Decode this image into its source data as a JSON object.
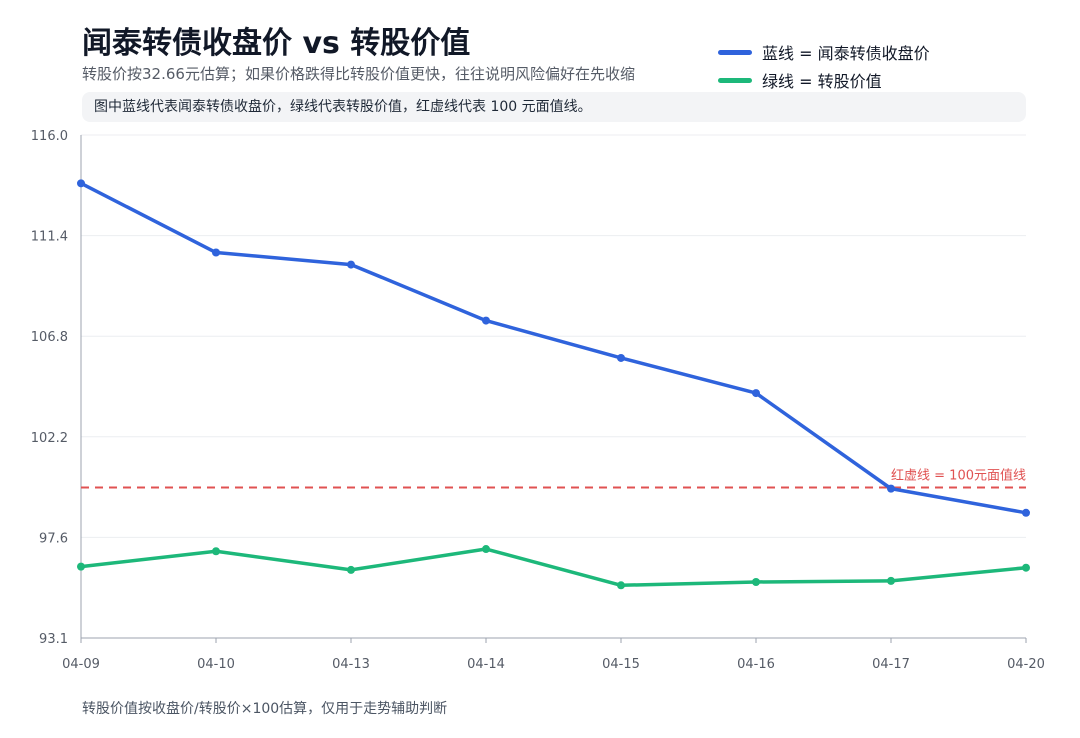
{
  "chart_data": {
    "type": "line",
    "title": "闻泰转债收盘价 vs 转股价值",
    "subtitle": "转股价按32.66元估算；如果价格跌得比转股价值更快，往往说明风险偏好在先收缩",
    "note": "图中蓝线代表闻泰转债收盘价，绿线代表转股价值，红虚线代表 100 元面值线。",
    "footer": "转股价值按收盘价/转股价×100估算，仅用于走势辅助判断",
    "categories": [
      "04-09",
      "04-10",
      "04-13",
      "04-14",
      "04-15",
      "04-16",
      "04-17",
      "04-20"
    ],
    "y_ticks": [
      "116.0",
      "111.4",
      "106.8",
      "102.2",
      "97.6",
      "93.1"
    ],
    "ylim": [
      93.1,
      116.0
    ],
    "grid": true,
    "legend_position": "top-right",
    "series": [
      {
        "name": "蓝线 = 闻泰转债收盘价",
        "color": "#2f63dc",
        "values": [
          113.8,
          110.65,
          110.1,
          107.55,
          105.85,
          104.25,
          99.9,
          98.8
        ]
      },
      {
        "name": "绿线 = 转股价值",
        "color": "#1db87a",
        "values": [
          96.35,
          97.05,
          96.2,
          97.15,
          95.5,
          95.65,
          95.7,
          96.3
        ]
      }
    ],
    "reference_line": {
      "value": 99.95,
      "label": "红虚线 = 100元面值线",
      "color": "#e05252"
    }
  }
}
